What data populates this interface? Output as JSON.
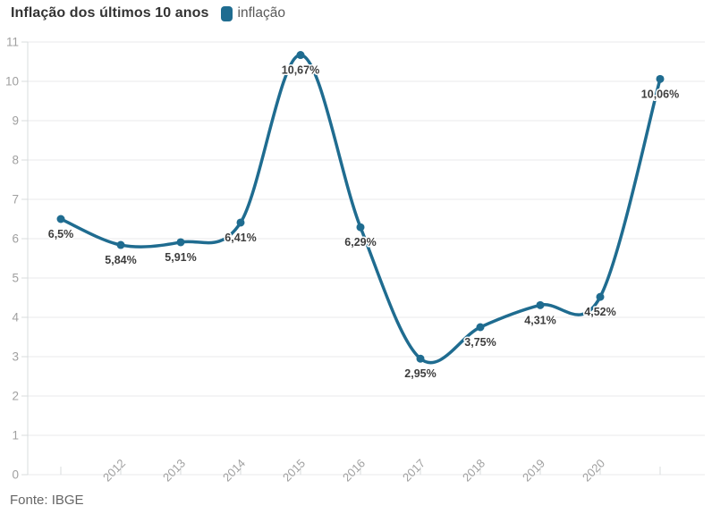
{
  "header": {
    "title": "Inflação dos últimos 10 anos",
    "legend": [
      {
        "label": "inflação",
        "color": "#1f6c90"
      }
    ]
  },
  "footer": {
    "source": "Fonte: IBGE"
  },
  "chart_data": {
    "type": "line",
    "title": "Inflação dos últimos 10 anos",
    "smooth": true,
    "grid": true,
    "legend_position": "top, inline with title",
    "x_tick_labels": [
      "",
      "2012",
      "2013",
      "2014",
      "2015",
      "2016",
      "2017",
      "2018",
      "2019",
      "2020",
      ""
    ],
    "y_ticks": [
      0,
      1,
      2,
      3,
      4,
      5,
      6,
      7,
      8,
      9,
      10,
      11
    ],
    "ylim": [
      0,
      11
    ],
    "series": [
      {
        "name": "inflação",
        "color": "#1f6c90",
        "values": [
          6.5,
          5.84,
          5.91,
          6.41,
          10.67,
          6.29,
          2.95,
          3.75,
          4.31,
          4.52,
          10.06
        ],
        "point_labels": [
          "6,5%",
          "5,84%",
          "5,91%",
          "6,41%",
          "10,67%",
          "6,29%",
          "2,95%",
          "3,75%",
          "4,31%",
          "4,52%",
          "10,06%"
        ]
      }
    ],
    "source": "Fonte: IBGE",
    "colors": {
      "line": "#1f6c90",
      "gridline": "#e9eaeb",
      "axis_line": "#d9dcde",
      "axis_text": "#a0a0a0",
      "data_label_text": "#3d3d3d",
      "title_text": "#333333",
      "legend_text": "#595959",
      "source_text": "#666666"
    }
  }
}
